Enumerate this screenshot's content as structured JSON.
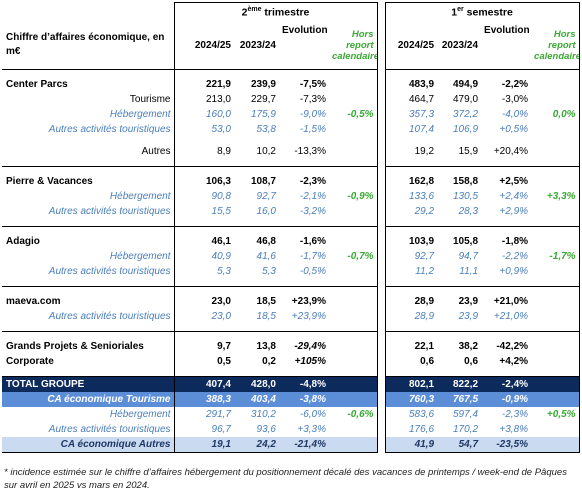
{
  "header": {
    "label": "Chiffre d’affaires économique, en m€",
    "groups": [
      {
        "main": "2",
        "sup": "ème",
        "rest": " trimestre"
      },
      {
        "main": "1",
        "sup": "er",
        "rest": " semestre"
      }
    ],
    "columns": [
      "2024/25",
      "2023/24",
      "Evolution",
      "Hors report calendaire*"
    ]
  },
  "rows": [
    {
      "label": "Center Parcs",
      "q": [
        "221,9",
        "239,9",
        "-7,5%",
        null
      ],
      "s": [
        "483,9",
        "494,9",
        "-2,2%",
        null
      ]
    },
    {
      "label": "Tourisme",
      "q": [
        "213,0",
        "229,7",
        "-7,3%",
        null
      ],
      "s": [
        "464,7",
        "479,0",
        "-3,0%",
        null
      ]
    },
    {
      "label": "Hébergement",
      "q": [
        "160,0",
        "175,9",
        "-9,0%",
        "-0,5%"
      ],
      "s": [
        "357,3",
        "372,2",
        "-4,0%",
        "0,0%"
      ]
    },
    {
      "label": "Autres activités touristiques",
      "q": [
        "53,0",
        "53,8",
        "-1,5%",
        null
      ],
      "s": [
        "107,4",
        "106,9",
        "+0,5%",
        null
      ]
    },
    {
      "label": "Autres",
      "q": [
        "8,9",
        "10,2",
        "-13,3%",
        null
      ],
      "s": [
        "19,2",
        "15,9",
        "+20,4%",
        null
      ]
    },
    {
      "label": "Pierre & Vacances",
      "q": [
        "106,3",
        "108,7",
        "-2,3%",
        null
      ],
      "s": [
        "162,8",
        "158,8",
        "+2,5%",
        null
      ]
    },
    {
      "label": "Hébergement",
      "q": [
        "90,8",
        "92,7",
        "-2,1%",
        "-0,9%"
      ],
      "s": [
        "133,6",
        "130,5",
        "+2,4%",
        "+3,3%"
      ]
    },
    {
      "label": "Autres activités touristiques",
      "q": [
        "15,5",
        "16,0",
        "-3,2%",
        null
      ],
      "s": [
        "29,2",
        "28,3",
        "+2,9%",
        null
      ]
    },
    {
      "label": "Adagio",
      "q": [
        "46,1",
        "46,8",
        "-1,6%",
        null
      ],
      "s": [
        "103,9",
        "105,8",
        "-1,8%",
        null
      ]
    },
    {
      "label": "Hébergement",
      "q": [
        "40,9",
        "41,6",
        "-1,7%",
        "-0,7%"
      ],
      "s": [
        "92,7",
        "94,7",
        "-2,2%",
        "-1,7%"
      ]
    },
    {
      "label": "Autres activités touristiques",
      "q": [
        "5,3",
        "5,3",
        "-0,5%",
        null
      ],
      "s": [
        "11,2",
        "11,1",
        "+0,9%",
        null
      ]
    },
    {
      "label": "maeva.com",
      "q": [
        "23,0",
        "18,5",
        "+23,9%",
        null
      ],
      "s": [
        "28,9",
        "23,9",
        "+21,0%",
        null
      ]
    },
    {
      "label": "Autres activités touristiques",
      "q": [
        "23,0",
        "18,5",
        "+23,9%",
        null
      ],
      "s": [
        "28,9",
        "23,9",
        "+21,0%",
        null
      ]
    },
    {
      "label": "Grands Projets & Senioriales",
      "q": [
        "9,7",
        "13,8",
        "-29,4%",
        null
      ],
      "s": [
        "22,1",
        "38,2",
        "-42,2%",
        null
      ]
    },
    {
      "label": "Corporate",
      "q": [
        "0,5",
        "0,2",
        "+105%",
        null
      ],
      "s": [
        "0,6",
        "0,6",
        "+4,2%",
        null
      ]
    },
    {
      "label": "TOTAL GROUPE",
      "q": [
        "407,4",
        "428,0",
        "-4,8%",
        null
      ],
      "s": [
        "802,1",
        "822,2",
        "-2,4%",
        null
      ]
    },
    {
      "label": "CA économique Tourisme",
      "q": [
        "388,3",
        "403,4",
        "-3,8%",
        null
      ],
      "s": [
        "760,3",
        "767,5",
        "-0,9%",
        null
      ]
    },
    {
      "label": "Hébergement",
      "q": [
        "291,7",
        "310,2",
        "-6,0%",
        "-0,6%"
      ],
      "s": [
        "583,6",
        "597,4",
        "-2,3%",
        "+0,5%"
      ]
    },
    {
      "label": "Autres activités touristiques",
      "q": [
        "96,7",
        "93,6",
        "+3,3%",
        null
      ],
      "s": [
        "176,6",
        "170,2",
        "+3,8%",
        null
      ]
    },
    {
      "label": "CA économique Autres",
      "q": [
        "19,1",
        "24,2",
        "-21,4%",
        null
      ],
      "s": [
        "41,9",
        "54,7",
        "-23,5%",
        null
      ]
    }
  ],
  "footnote": "* incidence estimée sur le chiffre d’affaires hébergement du positionnement décalé des vacances de printemps / week-end de Pâques sur avril en 2025 vs mars en 2024."
}
